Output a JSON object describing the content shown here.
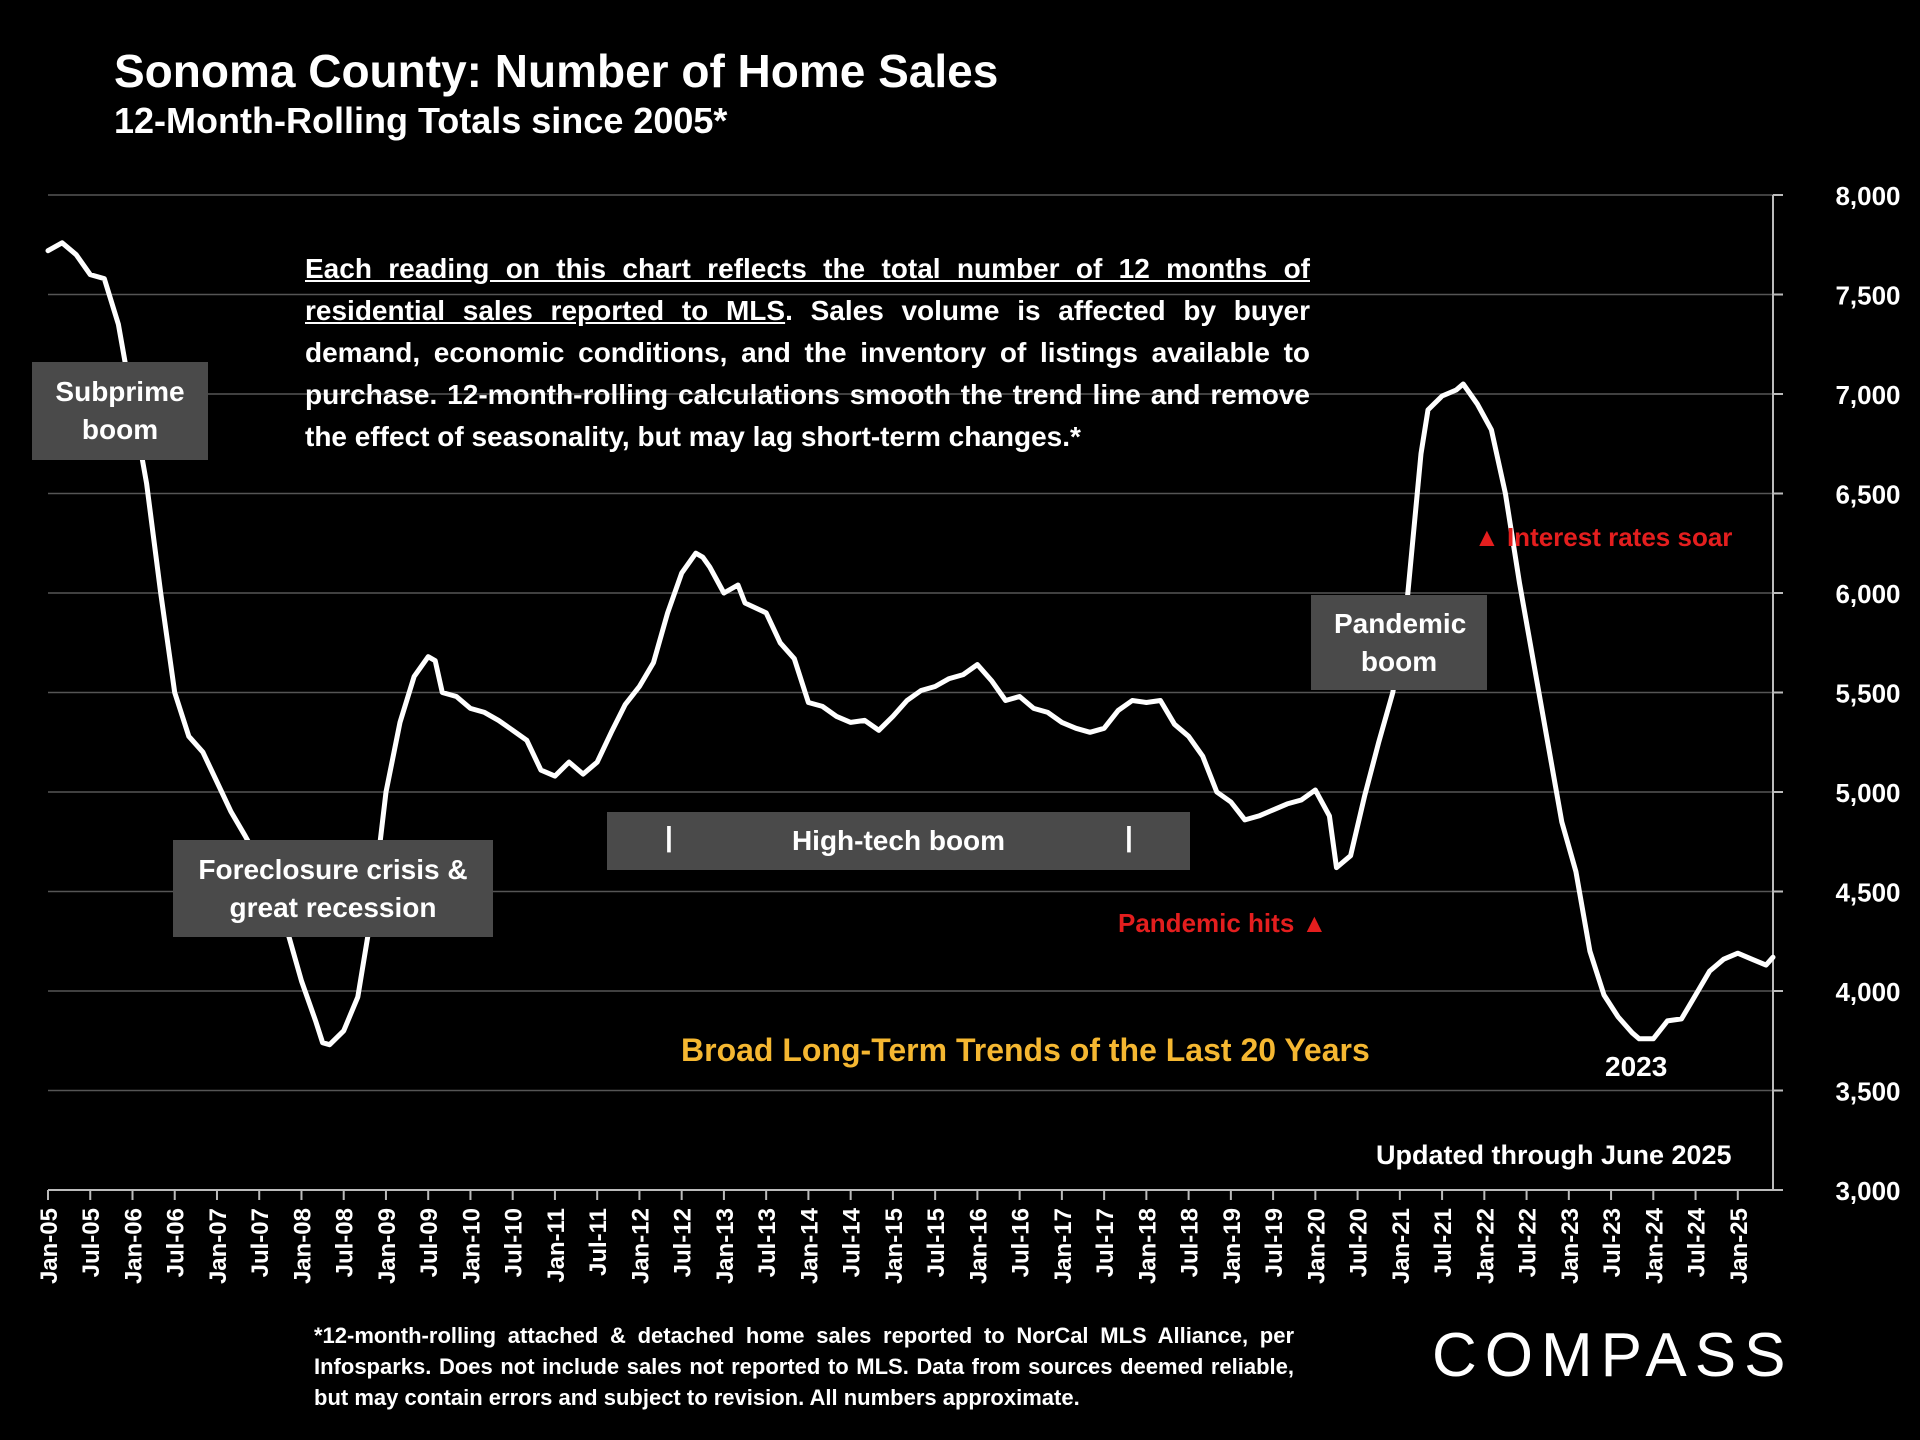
{
  "header": {
    "title": "Sonoma County:  Number of Home Sales",
    "subtitle": "12-Month-Rolling Totals since 2005*"
  },
  "description": {
    "underlined": "Each reading on this chart reflects the total number of 12 months of residential sales reported to MLS",
    "rest": ". Sales volume is affected by buyer demand, economic conditions, and the inventory of listings available to purchase. 12-month-rolling calculations smooth the trend line and remove the effect of seasonality, but may lag short-term changes.*"
  },
  "annotations": {
    "subprime": "Subprime boom",
    "foreclosure": "Foreclosure crisis & great recession",
    "hightech": "High-tech boom",
    "pandemic_boom": "Pandemic boom",
    "pandemic_hits": "Pandemic hits ▲",
    "interest_rates": "▲ Interest rates soar",
    "broad_trends": "Broad Long-Term Trends of the Last 20 Years",
    "year_2023": "2023",
    "updated": "Updated through June 2025"
  },
  "footnote": "*12-month-rolling attached & detached home sales reported to NorCal MLS Alliance, per Infosparks. Does not include sales not reported to MLS. Data from sources deemed reliable, but may contain errors and subject to revision. All numbers approximate.",
  "logo": "COMPASS",
  "colors": {
    "background": "#000000",
    "line": "#ffffff",
    "box": "#4a4a4a",
    "red": "#e41e1e",
    "gold": "#f5b731"
  },
  "chart_data": {
    "type": "line",
    "title": "Sonoma County:  Number of Home Sales",
    "subtitle": "12-Month-Rolling Totals since 2005*",
    "x_tick_labels": [
      "Jan-05",
      "Jul-05",
      "Jan-06",
      "Jul-06",
      "Jan-07",
      "Jul-07",
      "Jan-08",
      "Jul-08",
      "Jan-09",
      "Jul-09",
      "Jan-10",
      "Jul-10",
      "Jan-11",
      "Jul-11",
      "Jan-12",
      "Jul-12",
      "Jan-13",
      "Jul-13",
      "Jan-14",
      "Jul-14",
      "Jan-15",
      "Jul-15",
      "Jan-16",
      "Jul-16",
      "Jan-17",
      "Jul-17",
      "Jan-18",
      "Jul-18",
      "Jan-19",
      "Jul-19",
      "Jan-20",
      "Jul-20",
      "Jan-21",
      "Jul-21",
      "Jan-22",
      "Jul-22",
      "Jan-23",
      "Jul-23",
      "Jan-24",
      "Jul-24",
      "Jan-25"
    ],
    "y_tick_labels": [
      "3,000",
      "3,500",
      "4,000",
      "4,500",
      "5,000",
      "5,500",
      "6,000",
      "6,500",
      "7,000",
      "7,500",
      "8,000"
    ],
    "ylim": [
      3000,
      8000
    ],
    "y_axis_side": "right",
    "grid": true,
    "series": [
      {
        "points": [
          [
            "Jan-05",
            7720
          ],
          [
            "Mar-05",
            7760
          ],
          [
            "May-05",
            7700
          ],
          [
            "Jul-05",
            7600
          ],
          [
            "Sep-05",
            7580
          ],
          [
            "Nov-05",
            7350
          ],
          [
            "Jan-06",
            6950
          ],
          [
            "Mar-06",
            6550
          ],
          [
            "May-06",
            6000
          ],
          [
            "Jul-06",
            5500
          ],
          [
            "Sep-06",
            5280
          ],
          [
            "Nov-06",
            5200
          ],
          [
            "Jan-07",
            5050
          ],
          [
            "Mar-07",
            4900
          ],
          [
            "May-07",
            4780
          ],
          [
            "Jul-07",
            4650
          ],
          [
            "Sep-07",
            4450
          ],
          [
            "Nov-07",
            4300
          ],
          [
            "Jan-08",
            4050
          ],
          [
            "Mar-08",
            3850
          ],
          [
            "Apr-08",
            3740
          ],
          [
            "May-08",
            3730
          ],
          [
            "Jul-08",
            3800
          ],
          [
            "Sep-08",
            3970
          ],
          [
            "Nov-08",
            4400
          ],
          [
            "Jan-09",
            5000
          ],
          [
            "Mar-09",
            5350
          ],
          [
            "May-09",
            5580
          ],
          [
            "Jul-09",
            5680
          ],
          [
            "Aug-09",
            5660
          ],
          [
            "Sep-09",
            5500
          ],
          [
            "Nov-09",
            5480
          ],
          [
            "Jan-10",
            5420
          ],
          [
            "Mar-10",
            5400
          ],
          [
            "May-10",
            5360
          ],
          [
            "Jul-10",
            5310
          ],
          [
            "Sep-10",
            5260
          ],
          [
            "Nov-10",
            5110
          ],
          [
            "Jan-11",
            5080
          ],
          [
            "Mar-11",
            5150
          ],
          [
            "May-11",
            5090
          ],
          [
            "Jul-11",
            5150
          ],
          [
            "Sep-11",
            5300
          ],
          [
            "Nov-11",
            5440
          ],
          [
            "Jan-12",
            5530
          ],
          [
            "Mar-12",
            5650
          ],
          [
            "May-12",
            5900
          ],
          [
            "Jul-12",
            6100
          ],
          [
            "Sep-12",
            6200
          ],
          [
            "Oct-12",
            6180
          ],
          [
            "Nov-12",
            6130
          ],
          [
            "Jan-13",
            6000
          ],
          [
            "Mar-13",
            6040
          ],
          [
            "Apr-13",
            5950
          ],
          [
            "Jul-13",
            5900
          ],
          [
            "Sep-13",
            5750
          ],
          [
            "Nov-13",
            5670
          ],
          [
            "Jan-14",
            5450
          ],
          [
            "Mar-14",
            5430
          ],
          [
            "May-14",
            5380
          ],
          [
            "Jul-14",
            5350
          ],
          [
            "Sep-14",
            5360
          ],
          [
            "Nov-14",
            5310
          ],
          [
            "Jan-15",
            5380
          ],
          [
            "Mar-15",
            5460
          ],
          [
            "May-15",
            5510
          ],
          [
            "Jul-15",
            5530
          ],
          [
            "Sep-15",
            5570
          ],
          [
            "Nov-15",
            5590
          ],
          [
            "Jan-16",
            5640
          ],
          [
            "Mar-16",
            5560
          ],
          [
            "May-16",
            5460
          ],
          [
            "Jul-16",
            5480
          ],
          [
            "Sep-16",
            5420
          ],
          [
            "Nov-16",
            5400
          ],
          [
            "Jan-17",
            5350
          ],
          [
            "Mar-17",
            5320
          ],
          [
            "May-17",
            5300
          ],
          [
            "Jul-17",
            5320
          ],
          [
            "Sep-17",
            5410
          ],
          [
            "Nov-17",
            5460
          ],
          [
            "Jan-18",
            5450
          ],
          [
            "Mar-18",
            5460
          ],
          [
            "May-18",
            5340
          ],
          [
            "Jul-18",
            5280
          ],
          [
            "Sep-18",
            5180
          ],
          [
            "Nov-18",
            5000
          ],
          [
            "Jan-19",
            4950
          ],
          [
            "Mar-19",
            4860
          ],
          [
            "May-19",
            4880
          ],
          [
            "Jul-19",
            4910
          ],
          [
            "Sep-19",
            4940
          ],
          [
            "Nov-19",
            4960
          ],
          [
            "Jan-20",
            5010
          ],
          [
            "Mar-20",
            4880
          ],
          [
            "Apr-20",
            4620
          ],
          [
            "Jun-20",
            4680
          ],
          [
            "Aug-20",
            4980
          ],
          [
            "Oct-20",
            5250
          ],
          [
            "Dec-20",
            5500
          ],
          [
            "Feb-21",
            5950
          ],
          [
            "Apr-21",
            6700
          ],
          [
            "May-21",
            6920
          ],
          [
            "Jul-21",
            6990
          ],
          [
            "Sep-21",
            7020
          ],
          [
            "Oct-21",
            7050
          ],
          [
            "Dec-21",
            6950
          ],
          [
            "Feb-22",
            6820
          ],
          [
            "Apr-22",
            6500
          ],
          [
            "Jun-22",
            6050
          ],
          [
            "Aug-22",
            5650
          ],
          [
            "Oct-22",
            5250
          ],
          [
            "Dec-22",
            4850
          ],
          [
            "Feb-23",
            4600
          ],
          [
            "Apr-23",
            4200
          ],
          [
            "Jun-23",
            3980
          ],
          [
            "Aug-23",
            3870
          ],
          [
            "Oct-23",
            3790
          ],
          [
            "Nov-23",
            3760
          ],
          [
            "Jan-24",
            3760
          ],
          [
            "Mar-24",
            3850
          ],
          [
            "May-24",
            3860
          ],
          [
            "Jul-24",
            3980
          ],
          [
            "Sep-24",
            4100
          ],
          [
            "Nov-24",
            4160
          ],
          [
            "Jan-25",
            4190
          ],
          [
            "Mar-25",
            4160
          ],
          [
            "May-25",
            4130
          ],
          [
            "Jun-25",
            4170
          ]
        ]
      }
    ]
  }
}
